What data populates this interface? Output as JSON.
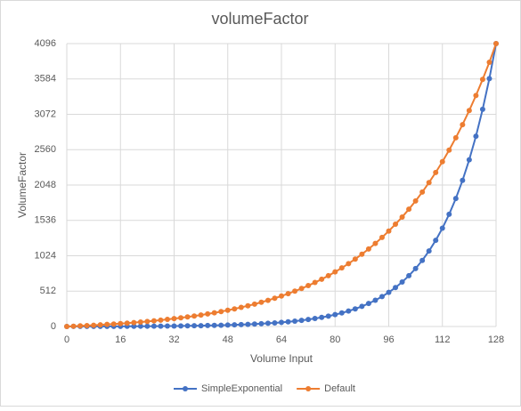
{
  "chart_data": {
    "type": "line",
    "title": "volumeFactor",
    "x_label": "Volume Input",
    "y_label": "VolumeFactor",
    "x": [
      0,
      2,
      4,
      6,
      8,
      10,
      12,
      14,
      16,
      18,
      20,
      22,
      24,
      26,
      28,
      30,
      32,
      34,
      36,
      38,
      40,
      42,
      44,
      46,
      48,
      50,
      52,
      54,
      56,
      58,
      60,
      62,
      64,
      66,
      68,
      70,
      72,
      74,
      76,
      78,
      80,
      82,
      84,
      86,
      88,
      90,
      92,
      94,
      96,
      98,
      100,
      102,
      104,
      106,
      108,
      110,
      112,
      114,
      116,
      118,
      120,
      122,
      124,
      126,
      128
    ],
    "series": [
      {
        "name": "SimpleExponential",
        "color": "#4472c4",
        "values": [
          0,
          1,
          1,
          1,
          1,
          2,
          2,
          2,
          2,
          3,
          3,
          4,
          4,
          5,
          5,
          6,
          7,
          8,
          9,
          11,
          12,
          14,
          16,
          18,
          21,
          24,
          27,
          31,
          35,
          40,
          46,
          52,
          60,
          68,
          78,
          89,
          101,
          116,
          132,
          150,
          172,
          196,
          224,
          255,
          291,
          333,
          380,
          433,
          494,
          564,
          644,
          735,
          839,
          957,
          1093,
          1247,
          1423,
          1624,
          1853,
          2115,
          2414,
          2755,
          3145,
          3589,
          4096
        ]
      },
      {
        "name": "Default",
        "color": "#ed7d31",
        "values": [
          0,
          4,
          9,
          13,
          18,
          24,
          30,
          36,
          42,
          49,
          57,
          65,
          73,
          82,
          92,
          103,
          114,
          126,
          138,
          152,
          166,
          182,
          198,
          216,
          235,
          255,
          277,
          300,
          324,
          351,
          379,
          409,
          441,
          475,
          512,
          550,
          592,
          637,
          684,
          735,
          790,
          848,
          910,
          976,
          1047,
          1122,
          1203,
          1290,
          1382,
          1481,
          1585,
          1698,
          1818,
          1946,
          2084,
          2230,
          2386,
          2554,
          2733,
          2923,
          3127,
          3344,
          3577,
          3826,
          4096
        ]
      }
    ],
    "xlim": [
      0,
      128
    ],
    "xticks": [
      0,
      16,
      32,
      48,
      64,
      80,
      96,
      112,
      128
    ],
    "ylim": [
      0,
      4096
    ],
    "yticks": [
      0,
      512,
      1024,
      1536,
      2048,
      2560,
      3072,
      3584,
      4096
    ],
    "grid": true,
    "legend": "bottom"
  }
}
